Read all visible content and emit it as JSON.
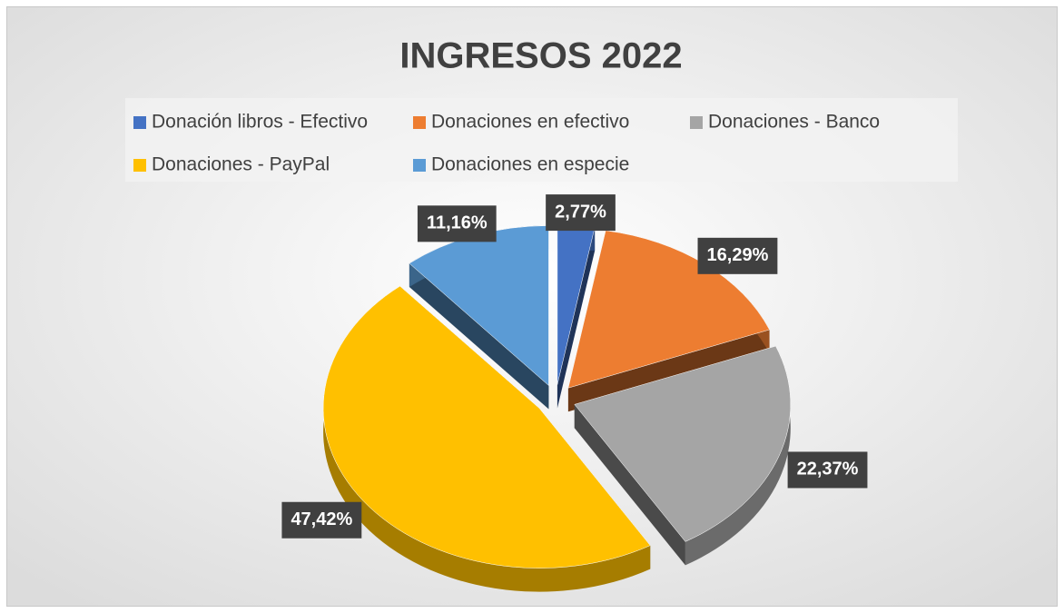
{
  "chart_data": {
    "type": "pie",
    "title": "INGRESOS 2022",
    "categories": [
      "Donación libros - Efectivo",
      "Donaciones en efectivo",
      "Donaciones - Banco",
      "Donaciones - PayPal",
      "Donaciones en especie"
    ],
    "values": [
      2.77,
      16.29,
      22.37,
      47.42,
      11.16
    ],
    "value_labels": [
      "2,77%",
      "16,29%",
      "22,37%",
      "47,42%",
      "11,16%"
    ],
    "colors": [
      "#4472c4",
      "#ed7d31",
      "#a5a5a5",
      "#ffc000",
      "#5b9bd5"
    ],
    "legend": "top"
  }
}
